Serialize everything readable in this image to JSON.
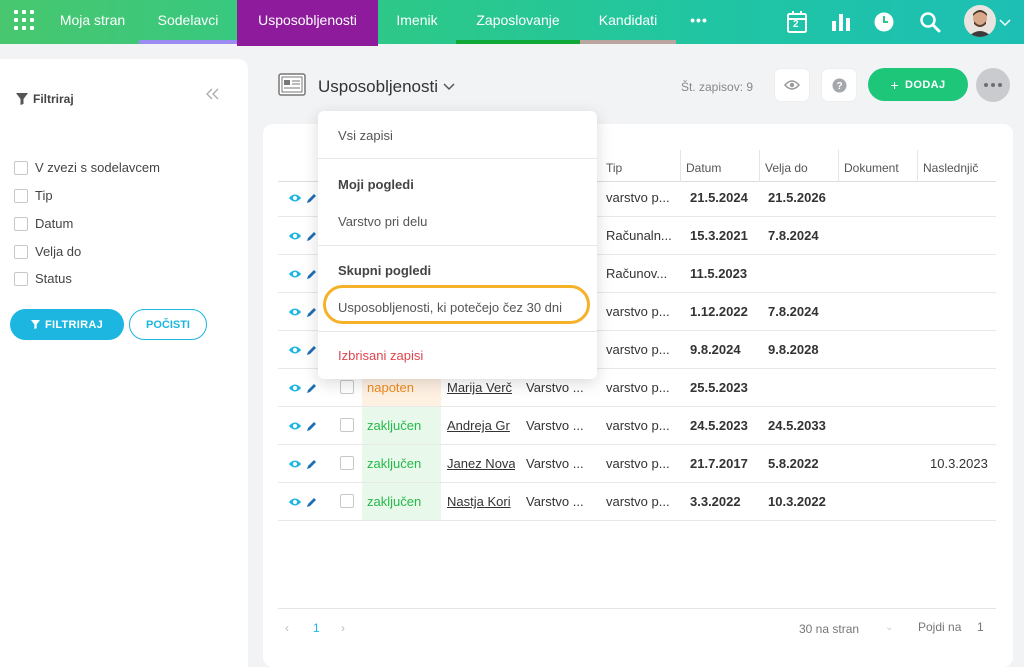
{
  "nav": {
    "tabs": [
      {
        "label": "Moja stran",
        "bar": ""
      },
      {
        "label": "Sodelavci",
        "bar": "#9a8cf0"
      },
      {
        "label": "Usposobljenosti",
        "bar": "",
        "active": true
      },
      {
        "label": "Imenik",
        "bar": ""
      },
      {
        "label": "Zaposlovanje",
        "bar": "#10a838"
      },
      {
        "label": "Kandidati",
        "bar": "#b9a6a0"
      }
    ],
    "more_label": "•••",
    "calendar_day": "2"
  },
  "sidebar": {
    "title": "Filtriraj",
    "filters": [
      "V zvezi s sodelavcem",
      "Tip",
      "Datum",
      "Velja do",
      "Status"
    ],
    "filter_button": "FILTRIRAJ",
    "clear_button": "POČISTI"
  },
  "header": {
    "title": "Usposobljenosti",
    "record_count": "Št. zapisov: 9",
    "add_button": "DODAJ"
  },
  "table": {
    "columns": [
      "Tip",
      "Datum",
      "Velja do",
      "Dokument",
      "Naslednjič"
    ],
    "rows": [
      {
        "status": "",
        "person": "",
        "type": "",
        "tip": "varstvo p...",
        "datum": "21.5.2024",
        "velja": "21.5.2026",
        "next": ""
      },
      {
        "status": "",
        "person": "",
        "type": "",
        "tip": "Računaln...",
        "datum": "15.3.2021",
        "velja": "7.8.2024",
        "next": ""
      },
      {
        "status": "",
        "person": "",
        "type": "",
        "tip": "Računov...",
        "datum": "11.5.2023",
        "velja": "",
        "next": ""
      },
      {
        "status": "",
        "person": "",
        "type": "",
        "tip": "varstvo p...",
        "datum": "1.12.2022",
        "velja": "7.8.2024",
        "next": ""
      },
      {
        "status": "",
        "person": "",
        "type": "",
        "tip": "varstvo p...",
        "datum": "9.8.2024",
        "velja": "9.8.2028",
        "next": ""
      },
      {
        "status": "napoten",
        "person": "Marija Verč",
        "type": "Varstvo ...",
        "tip": "varstvo p...",
        "datum": "25.5.2023",
        "velja": "",
        "next": ""
      },
      {
        "status": "zaključen",
        "person": "Andreja Gr",
        "type": "Varstvo ...",
        "tip": "varstvo p...",
        "datum": "24.5.2023",
        "velja": "24.5.2033",
        "next": ""
      },
      {
        "status": "zaključen",
        "person": "Janez Nova",
        "type": "Varstvo ...",
        "tip": "varstvo p...",
        "datum": "21.7.2017",
        "velja": "5.8.2022",
        "next": "10.3.2023"
      },
      {
        "status": "zaključen",
        "person": "Nastja Kori",
        "type": "Varstvo ...",
        "tip": "varstvo p...",
        "datum": "3.3.2022",
        "velja": "10.3.2022",
        "next": ""
      }
    ]
  },
  "pager": {
    "prev": "‹",
    "page": "1",
    "next": "›",
    "per_page": "30 na stran",
    "goto_label": "Pojdi na",
    "goto_value": "1"
  },
  "dropdown": {
    "all": "Vsi zapisi",
    "my_views_heading": "Moji pogledi",
    "my_views": [
      "Varstvo pri delu"
    ],
    "shared_heading": "Skupni pogledi",
    "shared_views": [
      "Usposobljenosti, ki potečejo čez 30 dni"
    ],
    "deleted": "Izbrisani zapisi"
  },
  "colors": {
    "accent": "#1cb6e0",
    "add": "#1ec67a",
    "active_tab": "#8d1b9c",
    "highlight": "#f5b128",
    "danger": "#e0454f"
  }
}
